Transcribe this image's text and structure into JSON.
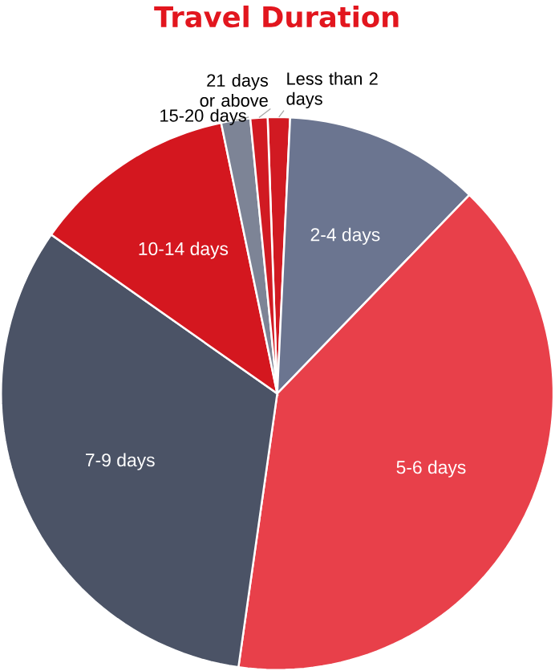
{
  "chart_data": {
    "type": "pie",
    "title": "Travel Duration",
    "categories": [
      "Less than 2 days",
      "2-4 days",
      "5-6 days",
      "7-9 days",
      "10-14 days",
      "15-20 days",
      "21 days or above"
    ],
    "values": [
      1.3,
      11.5,
      40,
      32.5,
      12,
      1.7,
      1
    ],
    "colors": [
      "#d11a22",
      "#6b7590",
      "#e8404a",
      "#4b5366",
      "#d4171f",
      "#7d8496",
      "#d11a22"
    ]
  }
}
